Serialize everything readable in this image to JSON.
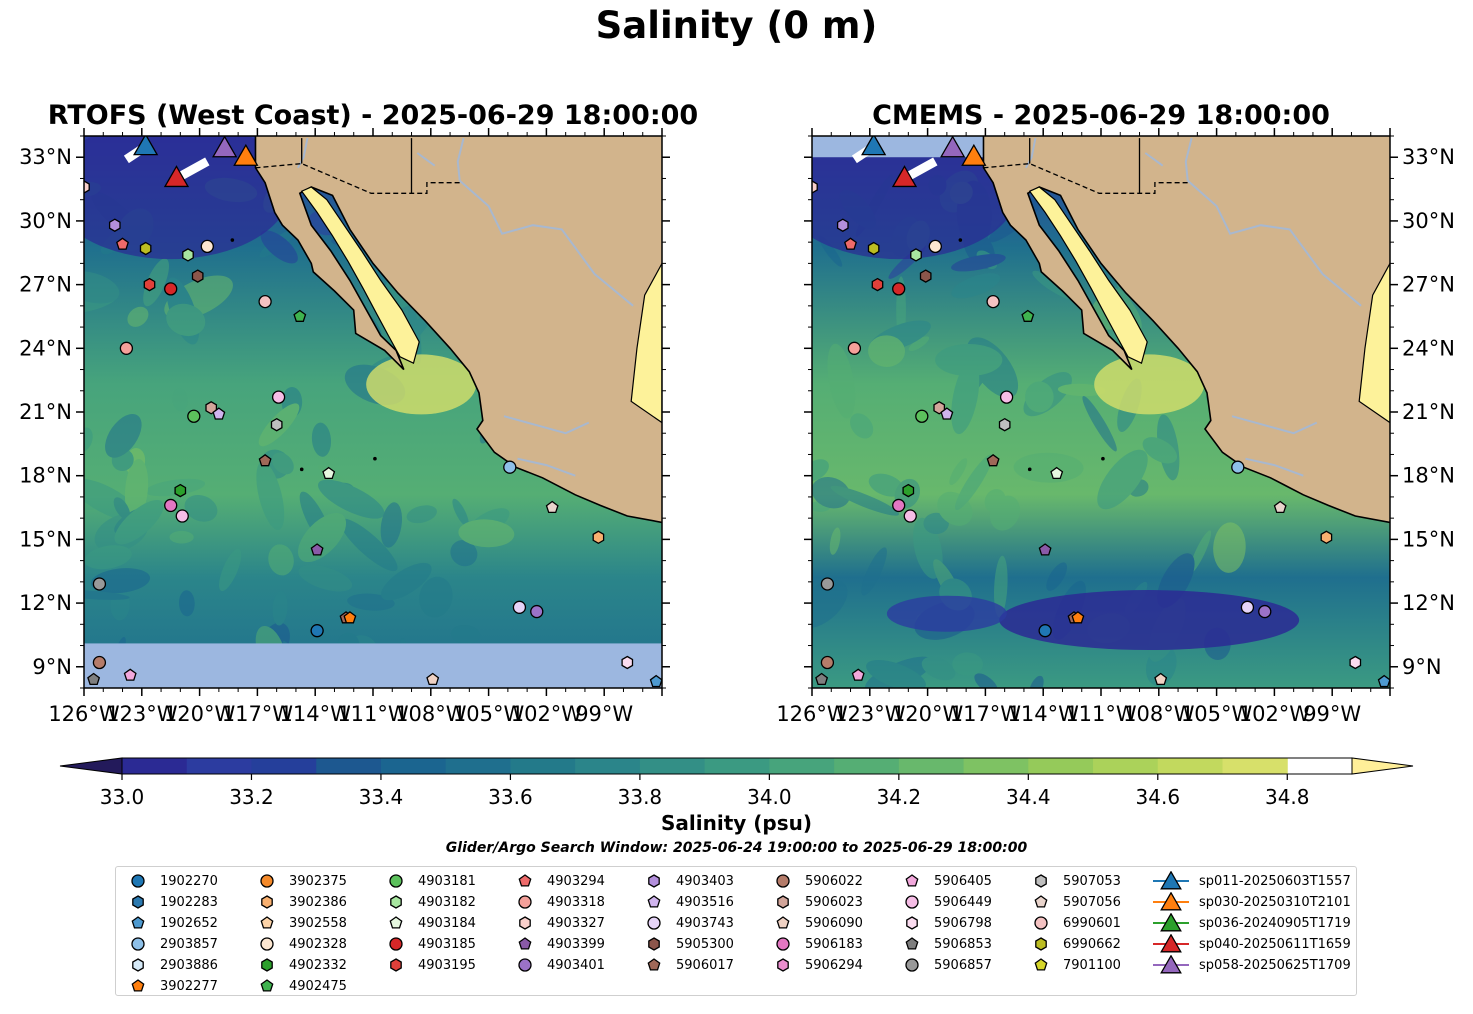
{
  "figure": {
    "suptitle": "Salinity (0 m)",
    "colorbar_label": "Salinity (psu)",
    "search_window": "Glider/Argo Search Window: 2025-06-24 19:00:00 to 2025-06-29 18:00:00"
  },
  "chart_data": [
    {
      "type": "heatmap",
      "title": "RTOFS (West Coast) - 2025-06-29 18:00:00",
      "variable": "Salinity",
      "units": "psu",
      "xlim": [
        -126,
        -96
      ],
      "ylim": [
        8,
        34
      ],
      "x_ticks": [
        "126°W",
        "123°W",
        "120°W",
        "117°W",
        "114°W",
        "111°W",
        "108°W",
        "105°W",
        "102°W",
        "99°W"
      ],
      "y_ticks": [
        "9°N",
        "12°N",
        "15°N",
        "18°N",
        "21°N",
        "24°N",
        "27°N",
        "30°N",
        "33°N"
      ],
      "y_axis_side": "left",
      "no_data_below_lat": 10.1,
      "no_data_above_lat": null
    },
    {
      "type": "heatmap",
      "title": "CMEMS - 2025-06-29 18:00:00",
      "variable": "Salinity",
      "units": "psu",
      "xlim": [
        -126,
        -96
      ],
      "ylim": [
        8,
        34
      ],
      "x_ticks": [
        "126°W",
        "123°W",
        "120°W",
        "117°W",
        "114°W",
        "111°W",
        "108°W",
        "105°W",
        "102°W",
        "99°W"
      ],
      "y_ticks": [
        "9°N",
        "12°N",
        "15°N",
        "18°N",
        "21°N",
        "24°N",
        "27°N",
        "30°N",
        "33°N"
      ],
      "y_axis_side": "right",
      "no_data_below_lat": null,
      "no_data_above_lat": 33.0
    }
  ],
  "colorbar": {
    "min": 32.9,
    "max": 35.0,
    "step": 0.1,
    "ticks": [
      "33.0",
      "33.2",
      "33.4",
      "33.6",
      "33.8",
      "34.0",
      "34.2",
      "34.4",
      "34.6",
      "34.8"
    ],
    "extend": "both",
    "colors": [
      "#231a5b",
      "#2b2a94",
      "#2c3ca0",
      "#253f9b",
      "#1d5890",
      "#1b6590",
      "#1f6f8e",
      "#237a8a",
      "#2b858a",
      "#338f86",
      "#3b9a82",
      "#47a47c",
      "#55ae74",
      "#68b86c",
      "#7ec263",
      "#95ca5a",
      "#abd25a",
      "#c2d95e",
      "#d7e06a",
      "#ffef99"
    ]
  },
  "colors": {
    "land": "#d2b48c",
    "nodata": "#9cb7e0",
    "gulf": "#fdf29a",
    "river": "#a8b8cf"
  },
  "legend": {
    "items": [
      {
        "label": "1902270",
        "marker": "circle",
        "color": "#1f77b4"
      },
      {
        "label": "1902283",
        "marker": "hexagon",
        "color": "#2c7ab0"
      },
      {
        "label": "1902652",
        "marker": "pentagon",
        "color": "#4e9ad0"
      },
      {
        "label": "2903857",
        "marker": "circle",
        "color": "#8ec0e8"
      },
      {
        "label": "2903886",
        "marker": "hexagon",
        "color": "#d6eaf8"
      },
      {
        "label": "3902277",
        "marker": "pentagon",
        "color": "#ff7f0e"
      },
      {
        "label": "3902375",
        "marker": "circle",
        "color": "#f58a2a"
      },
      {
        "label": "3902386",
        "marker": "hexagon",
        "color": "#f8b070"
      },
      {
        "label": "3902558",
        "marker": "pentagon",
        "color": "#fcd3a8"
      },
      {
        "label": "4902328",
        "marker": "circle",
        "color": "#fde7d1"
      },
      {
        "label": "4902332",
        "marker": "hexagon",
        "color": "#2ca02c"
      },
      {
        "label": "4902475",
        "marker": "pentagon",
        "color": "#3fb34f"
      },
      {
        "label": "4903181",
        "marker": "circle",
        "color": "#5cc15c"
      },
      {
        "label": "4903182",
        "marker": "hexagon",
        "color": "#a8e6a0"
      },
      {
        "label": "4903184",
        "marker": "pentagon",
        "color": "#e6f8e0"
      },
      {
        "label": "4903185",
        "marker": "circle",
        "color": "#d62728"
      },
      {
        "label": "4903195",
        "marker": "hexagon",
        "color": "#e0403a"
      },
      {
        "label": "4903294",
        "marker": "pentagon",
        "color": "#ee6a6a"
      },
      {
        "label": "4903318",
        "marker": "circle",
        "color": "#f4a09a"
      },
      {
        "label": "4903327",
        "marker": "hexagon",
        "color": "#f9d0cc"
      },
      {
        "label": "4903399",
        "marker": "pentagon",
        "color": "#8a5aa8"
      },
      {
        "label": "4903401",
        "marker": "circle",
        "color": "#9b72c8"
      },
      {
        "label": "4903403",
        "marker": "hexagon",
        "color": "#b38fdc"
      },
      {
        "label": "4903516",
        "marker": "pentagon",
        "color": "#d0b4ee"
      },
      {
        "label": "4903743",
        "marker": "circle",
        "color": "#e6d4f8"
      },
      {
        "label": "5905300",
        "marker": "hexagon",
        "color": "#8c564b"
      },
      {
        "label": "5906017",
        "marker": "pentagon",
        "color": "#a06858"
      },
      {
        "label": "5906022",
        "marker": "circle",
        "color": "#b57c6a"
      },
      {
        "label": "5906023",
        "marker": "hexagon",
        "color": "#d2a59a"
      },
      {
        "label": "5906090",
        "marker": "pentagon",
        "color": "#f0d2c4"
      },
      {
        "label": "5906183",
        "marker": "circle",
        "color": "#e377c2"
      },
      {
        "label": "5906294",
        "marker": "hexagon",
        "color": "#ea8ece"
      },
      {
        "label": "5906405",
        "marker": "pentagon",
        "color": "#f2a8dc"
      },
      {
        "label": "5906449",
        "marker": "circle",
        "color": "#f6bde6"
      },
      {
        "label": "5906798",
        "marker": "hexagon",
        "color": "#fbdcf0"
      },
      {
        "label": "5906853",
        "marker": "pentagon",
        "color": "#7f7f7f"
      },
      {
        "label": "5906857",
        "marker": "circle",
        "color": "#999999"
      },
      {
        "label": "5907053",
        "marker": "hexagon",
        "color": "#bfbfbf"
      },
      {
        "label": "5907056",
        "marker": "pentagon",
        "color": "#e9d4cc"
      },
      {
        "label": "6990601",
        "marker": "circle",
        "color": "#f4c2c2"
      },
      {
        "label": "6990662",
        "marker": "hexagon",
        "color": "#bcbd22"
      },
      {
        "label": "7901100",
        "marker": "pentagon",
        "color": "#d6d62a"
      },
      {
        "label": "sp011-20250603T1557",
        "marker": "triangle",
        "color": "#1f77b4"
      },
      {
        "label": "sp030-20250310T2101",
        "marker": "triangle",
        "color": "#ff7f0e"
      },
      {
        "label": "sp036-20240905T1719",
        "marker": "triangle",
        "color": "#2ca02c"
      },
      {
        "label": "sp040-20250611T1659",
        "marker": "triangle",
        "color": "#d62728"
      },
      {
        "label": "sp058-20250625T1709",
        "marker": "triangle",
        "color": "#9467bd"
      }
    ]
  }
}
